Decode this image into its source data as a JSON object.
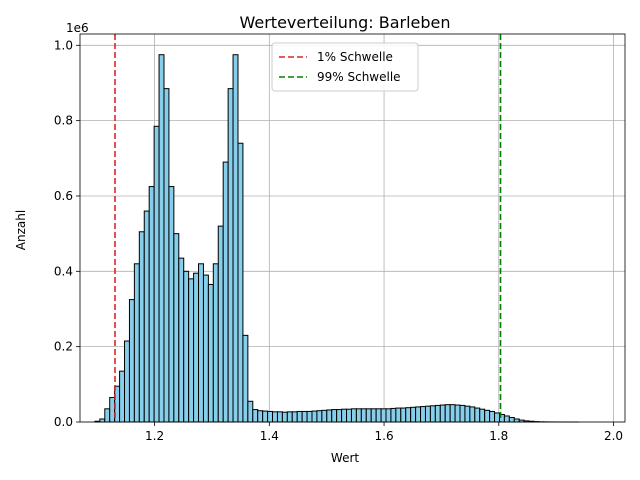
{
  "chart_data": {
    "type": "bar",
    "title": "Werteverteilung: Barleben",
    "xlabel": "Wert",
    "ylabel": "Anzahl",
    "y_scale_label": "1e6",
    "xlim": [
      1.07,
      2.02
    ],
    "ylim": [
      0,
      1030000
    ],
    "x_ticks": [
      {
        "value": 1.2,
        "label": "1.2"
      },
      {
        "value": 1.4,
        "label": "1.4"
      },
      {
        "value": 1.6,
        "label": "1.6"
      },
      {
        "value": 1.8,
        "label": "1.8"
      },
      {
        "value": 2.0,
        "label": "2.0"
      }
    ],
    "y_ticks": [
      {
        "value": 0,
        "label": "0.0"
      },
      {
        "value": 200000,
        "label": "0.2"
      },
      {
        "value": 400000,
        "label": "0.4"
      },
      {
        "value": 600000,
        "label": "0.6"
      },
      {
        "value": 800000,
        "label": "0.8"
      },
      {
        "value": 1000000,
        "label": "1.0"
      }
    ],
    "grid": true,
    "bar_color": "#87CEEB",
    "bin_width": 0.0086,
    "bin_start": 1.096,
    "counts": [
      2000,
      8000,
      35000,
      65000,
      95000,
      135000,
      215000,
      325000,
      420000,
      505000,
      560000,
      625000,
      785000,
      975000,
      885000,
      625000,
      500000,
      435000,
      400000,
      380000,
      395000,
      420000,
      390000,
      365000,
      420000,
      520000,
      690000,
      885000,
      975000,
      740000,
      230000,
      55000,
      33000,
      30000,
      29000,
      28000,
      27000,
      27000,
      26000,
      27000,
      27000,
      28000,
      28000,
      28000,
      29000,
      30000,
      31000,
      32000,
      33000,
      33000,
      34000,
      34000,
      35000,
      35000,
      35000,
      35000,
      35000,
      35000,
      35000,
      35000,
      36000,
      37000,
      37000,
      38000,
      39000,
      40000,
      41000,
      42000,
      43000,
      44000,
      45000,
      46000,
      46000,
      45000,
      44000,
      42000,
      40000,
      37000,
      34000,
      31000,
      28000,
      24000,
      20000,
      16000,
      12000,
      8000,
      5000,
      3000,
      2000,
      1000,
      500,
      300,
      150,
      80,
      40,
      20,
      10,
      5
    ],
    "thresholds": [
      {
        "name": "1% Schwelle",
        "value": 1.131,
        "color": "#d62728"
      },
      {
        "name": "99% Schwelle",
        "value": 1.803,
        "color": "#008000"
      }
    ],
    "legend_position": "top-center"
  }
}
